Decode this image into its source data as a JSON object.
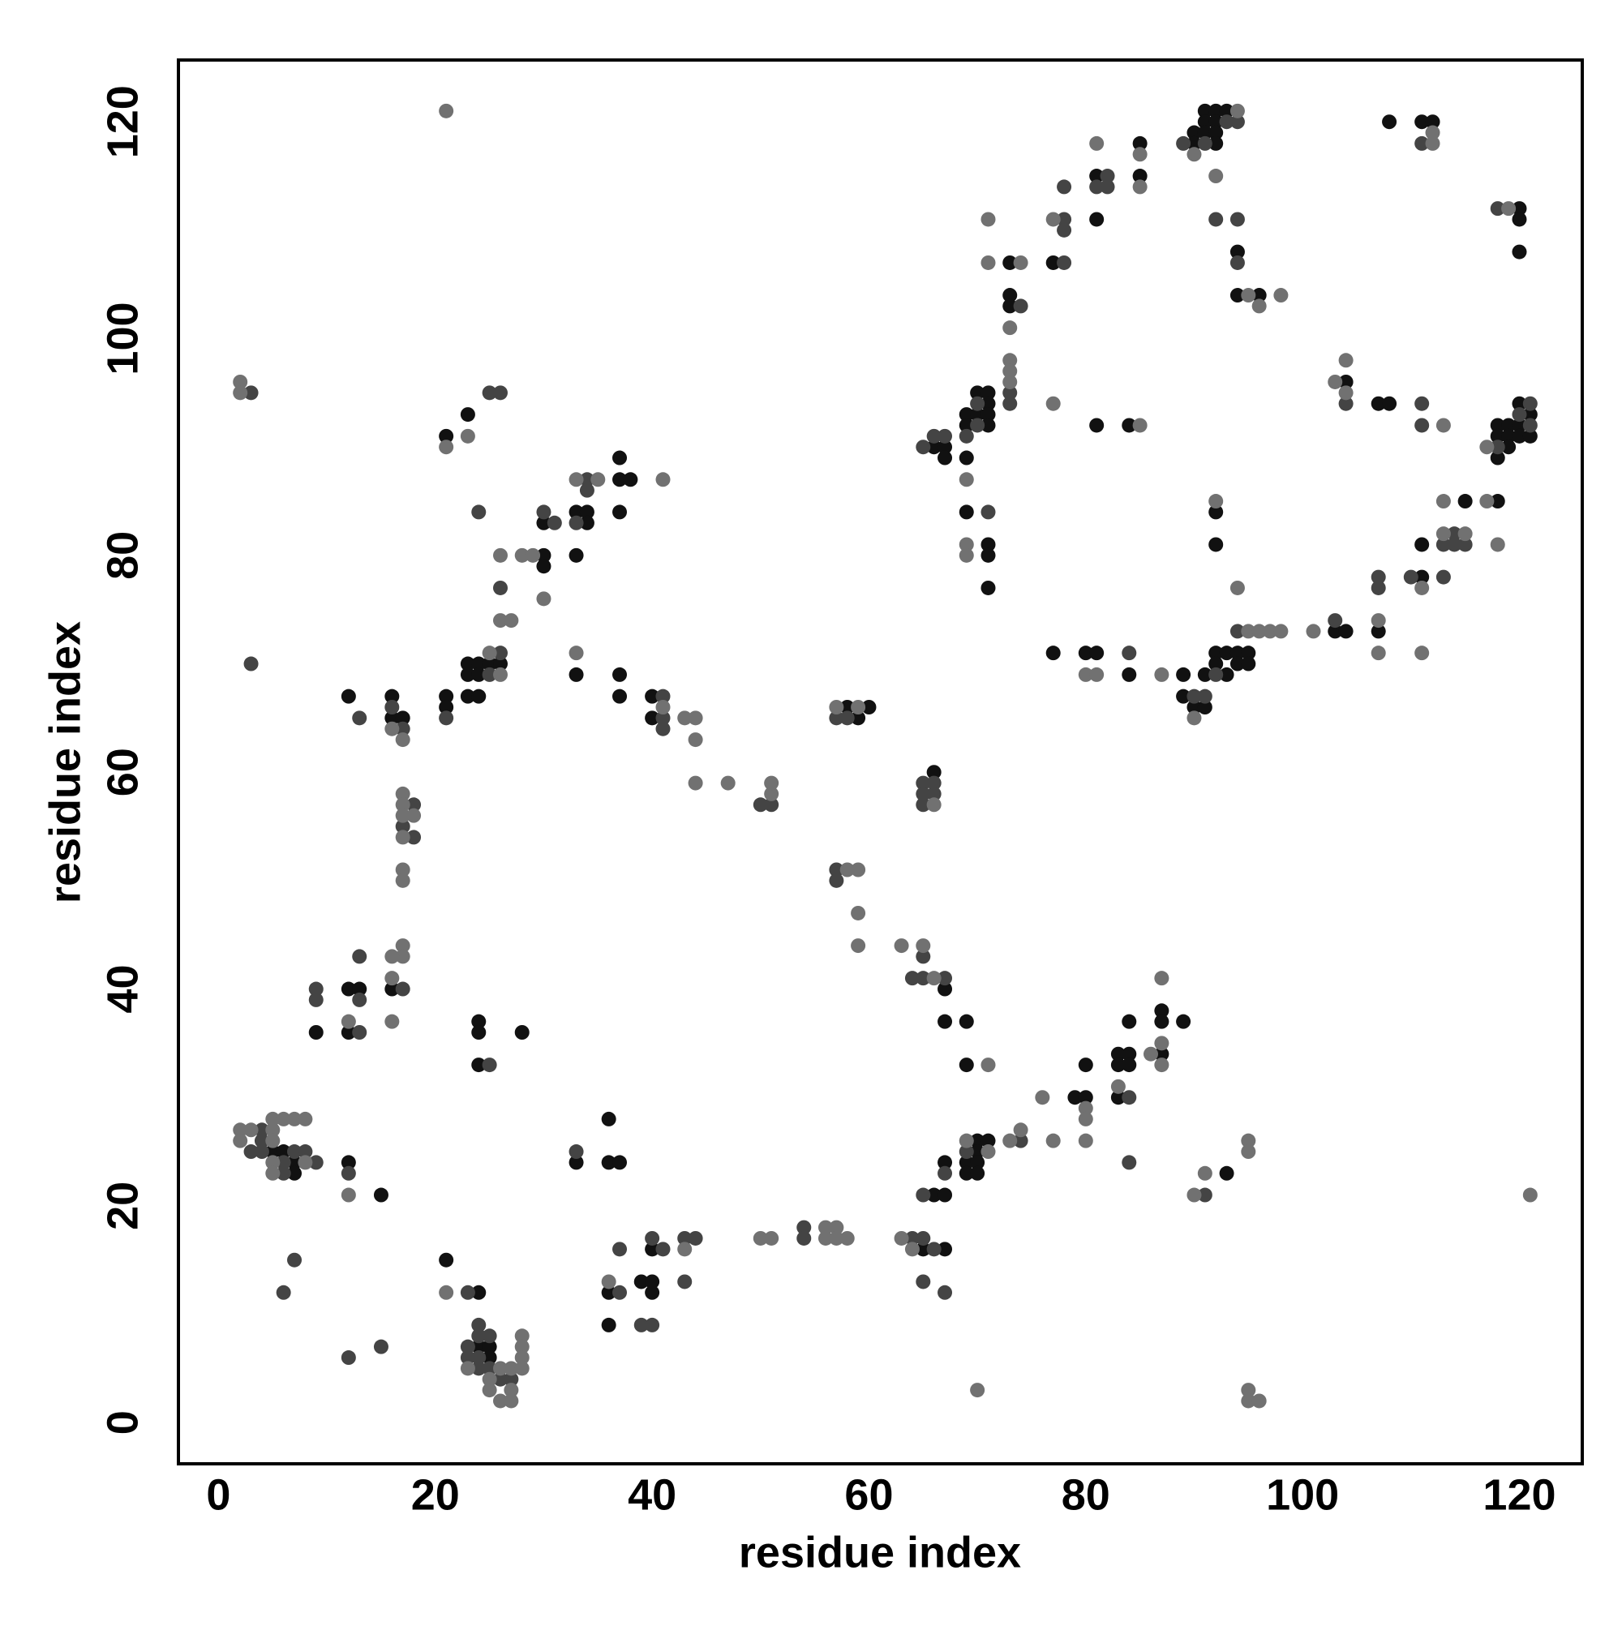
{
  "chart_data": {
    "type": "scatter",
    "xlabel": "residue index",
    "ylabel": "residue index",
    "xlim": [
      -3.7,
      125.8
    ],
    "ylim": [
      -3.8,
      125.7
    ],
    "xticks": [
      0,
      20,
      40,
      60,
      80,
      100,
      120
    ],
    "yticks": [
      0,
      20,
      40,
      60,
      80,
      100,
      120
    ],
    "grid": false,
    "series": [
      {
        "color": "#111111",
        "x": [
          23,
          21,
          21,
          21,
          23,
          23,
          23,
          24,
          24,
          24,
          25,
          26,
          30,
          30,
          30,
          33,
          34,
          34,
          33,
          37,
          37,
          37,
          38,
          33,
          37,
          37,
          40,
          40,
          12,
          16,
          16,
          17,
          16,
          9,
          12,
          13,
          12,
          24,
          24,
          24,
          28,
          5,
          6,
          7,
          7,
          12,
          15,
          21,
          24,
          24,
          25,
          25,
          33,
          36,
          36,
          37,
          36,
          36,
          39,
          40,
          40,
          40,
          65,
          67,
          58,
          59,
          60,
          67,
          67,
          66,
          69,
          69,
          66,
          67,
          67,
          69,
          69,
          70,
          70,
          70,
          70,
          71,
          79,
          80,
          80,
          83,
          83,
          83,
          84,
          84,
          84,
          87,
          87,
          87,
          89,
          93,
          66,
          67,
          67,
          69,
          69,
          69,
          70,
          70,
          71,
          71,
          71,
          71,
          69,
          71,
          71,
          71,
          73,
          73,
          73,
          77,
          81,
          81,
          85,
          85,
          90,
          90,
          91,
          91,
          91,
          92,
          92,
          92,
          92,
          93,
          94,
          94,
          96,
          81,
          84,
          77,
          80,
          81,
          84,
          89,
          89,
          90,
          91,
          91,
          92,
          92,
          93,
          93,
          94,
          94,
          95,
          95,
          92,
          92,
          103,
          104,
          104,
          107,
          108,
          107,
          108,
          111,
          111,
          111,
          112,
          115,
          118,
          118,
          118,
          118,
          120,
          120,
          120,
          119,
          119,
          119,
          120,
          120,
          120,
          121,
          121
        ],
        "y": [
          93,
          91,
          67,
          66,
          70,
          69,
          67,
          70,
          69,
          67,
          70,
          70,
          80,
          79,
          83,
          84,
          84,
          83,
          80,
          89,
          87,
          84,
          87,
          69,
          69,
          67,
          67,
          65,
          67,
          67,
          65,
          65,
          40,
          36,
          40,
          40,
          36,
          37,
          36,
          33,
          36,
          25,
          25,
          24,
          23,
          24,
          21,
          15,
          12,
          7,
          7,
          6,
          24,
          28,
          24,
          24,
          12,
          9,
          13,
          16,
          13,
          12,
          16,
          16,
          66,
          65,
          66,
          40,
          37,
          60,
          37,
          33,
          21,
          21,
          24,
          24,
          23,
          26,
          25,
          24,
          23,
          26,
          30,
          30,
          33,
          34,
          33,
          30,
          34,
          33,
          37,
          38,
          37,
          34,
          37,
          23,
          90,
          90,
          89,
          93,
          92,
          89,
          95,
          93,
          95,
          94,
          93,
          92,
          84,
          81,
          80,
          77,
          104,
          103,
          107,
          107,
          115,
          111,
          118,
          115,
          119,
          118,
          121,
          120,
          119,
          121,
          120,
          119,
          118,
          121,
          108,
          104,
          104,
          92,
          92,
          71,
          71,
          71,
          69,
          69,
          67,
          66,
          69,
          66,
          71,
          70,
          71,
          69,
          71,
          70,
          71,
          70,
          84,
          81,
          73,
          73,
          96,
          94,
          94,
          73,
          120,
          78,
          81,
          120,
          120,
          85,
          92,
          91,
          89,
          85,
          112,
          111,
          108,
          92,
          91,
          90,
          94,
          92,
          91,
          93,
          91
        ]
      },
      {
        "color": "#444444",
        "x": [
          3,
          24,
          25,
          26,
          21,
          25,
          26,
          26,
          30,
          31,
          33,
          34,
          34,
          41,
          41,
          41,
          50,
          51,
          13,
          16,
          17,
          18,
          17,
          18,
          17,
          9,
          9,
          13,
          13,
          13,
          25,
          3,
          4,
          4,
          4,
          6,
          6,
          7,
          8,
          9,
          12,
          7,
          6,
          12,
          15,
          23,
          23,
          23,
          24,
          24,
          24,
          24,
          25,
          25,
          26,
          27,
          33,
          37,
          37,
          39,
          40,
          40,
          41,
          43,
          43,
          44,
          54,
          54,
          64,
          65,
          65,
          66,
          67,
          57,
          58,
          57,
          57,
          64,
          65,
          65,
          67,
          65,
          65,
          65,
          66,
          66,
          65,
          67,
          69,
          74,
          84,
          84,
          91,
          65,
          66,
          67,
          69,
          70,
          70,
          71,
          73,
          73,
          74,
          78,
          78,
          78,
          78,
          81,
          82,
          82,
          89,
          91,
          93,
          94,
          92,
          94,
          94,
          84,
          90,
          91,
          92,
          94,
          103,
          104,
          107,
          107,
          110,
          111,
          111,
          111,
          113,
          113,
          114,
          114,
          115,
          118,
          118,
          120,
          121,
          121,
          3
        ],
        "y": [
          95,
          84,
          95,
          95,
          65,
          69,
          71,
          77,
          84,
          83,
          83,
          87,
          86,
          67,
          65,
          64,
          57,
          57,
          65,
          66,
          64,
          57,
          55,
          54,
          40,
          40,
          39,
          36,
          39,
          43,
          33,
          25,
          27,
          26,
          25,
          24,
          23,
          25,
          25,
          24,
          23,
          15,
          12,
          6,
          7,
          12,
          7,
          6,
          9,
          8,
          6,
          5,
          8,
          5,
          4,
          4,
          25,
          16,
          12,
          9,
          17,
          9,
          16,
          17,
          13,
          17,
          18,
          17,
          17,
          17,
          13,
          16,
          12,
          65,
          65,
          51,
          50,
          41,
          43,
          41,
          41,
          59,
          58,
          57,
          59,
          58,
          21,
          23,
          25,
          26,
          30,
          24,
          21,
          90,
          91,
          91,
          91,
          94,
          92,
          84,
          95,
          94,
          103,
          111,
          110,
          107,
          114,
          114,
          115,
          114,
          118,
          118,
          120,
          120,
          111,
          111,
          107,
          71,
          67,
          67,
          69,
          73,
          74,
          94,
          78,
          77,
          78,
          118,
          94,
          92,
          81,
          78,
          82,
          81,
          81,
          90,
          112,
          93,
          94,
          92,
          70
        ]
      },
      {
        "color": "#717171",
        "x": [
          2,
          2,
          21,
          21,
          23,
          25,
          26,
          26,
          27,
          26,
          28,
          29,
          30,
          33,
          35,
          41,
          33,
          41,
          43,
          44,
          44,
          44,
          47,
          51,
          51,
          16,
          17,
          17,
          17,
          17,
          18,
          17,
          17,
          17,
          17,
          17,
          16,
          16,
          16,
          12,
          2,
          2,
          3,
          5,
          5,
          5,
          5,
          5,
          6,
          7,
          8,
          8,
          12,
          21,
          23,
          25,
          25,
          26,
          26,
          27,
          27,
          27,
          28,
          28,
          28,
          28,
          36,
          43,
          50,
          51,
          56,
          56,
          57,
          57,
          58,
          63,
          64,
          57,
          59,
          58,
          59,
          59,
          59,
          63,
          65,
          66,
          66,
          71,
          69,
          71,
          73,
          74,
          76,
          77,
          80,
          80,
          80,
          83,
          86,
          87,
          87,
          87,
          90,
          91,
          95,
          95,
          70,
          95,
          95,
          96,
          121,
          69,
          69,
          69,
          73,
          73,
          73,
          73,
          74,
          71,
          71,
          77,
          77,
          81,
          85,
          85,
          90,
          94,
          92,
          95,
          96,
          98,
          85,
          80,
          81,
          87,
          90,
          95,
          96,
          97,
          98,
          92,
          94,
          101,
          103,
          104,
          104,
          107,
          107,
          111,
          111,
          112,
          112,
          113,
          113,
          113,
          115,
          117,
          117,
          118,
          119
        ],
        "y": [
          96,
          95,
          121,
          90,
          91,
          71,
          69,
          74,
          74,
          80,
          80,
          80,
          76,
          87,
          87,
          87,
          71,
          66,
          65,
          65,
          63,
          59,
          59,
          58,
          59,
          64,
          63,
          58,
          57,
          56,
          56,
          54,
          51,
          50,
          44,
          43,
          43,
          41,
          37,
          37,
          27,
          26,
          27,
          27,
          26,
          28,
          24,
          23,
          28,
          28,
          28,
          24,
          21,
          12,
          5,
          4,
          3,
          5,
          2,
          5,
          3,
          2,
          8,
          7,
          6,
          5,
          13,
          16,
          17,
          17,
          18,
          17,
          18,
          17,
          17,
          17,
          16,
          66,
          66,
          51,
          51,
          47,
          44,
          44,
          44,
          41,
          57,
          33,
          26,
          25,
          26,
          27,
          30,
          26,
          29,
          28,
          26,
          31,
          34,
          41,
          35,
          33,
          21,
          23,
          26,
          25,
          3,
          3,
          2,
          2,
          21,
          87,
          81,
          80,
          98,
          97,
          96,
          101,
          107,
          107,
          111,
          111,
          94,
          118,
          117,
          114,
          117,
          121,
          115,
          104,
          103,
          104,
          92,
          69,
          69,
          69,
          65,
          73,
          73,
          73,
          73,
          85,
          77,
          73,
          96,
          98,
          95,
          74,
          71,
          77,
          71,
          119,
          118,
          92,
          85,
          82,
          82,
          90,
          85,
          81,
          112
        ]
      }
    ]
  }
}
